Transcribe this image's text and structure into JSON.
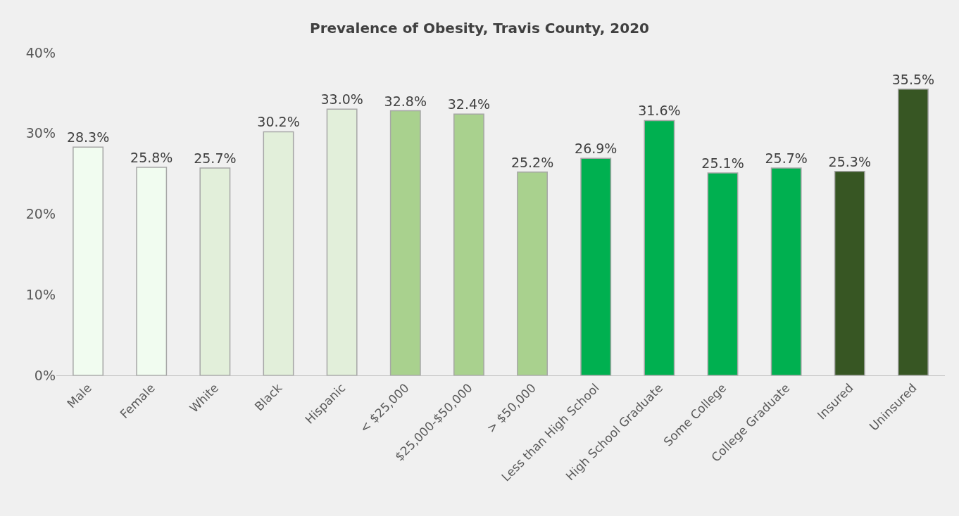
{
  "chart_data": {
    "type": "bar",
    "title": "Prevalence of Obesity, Travis County, 2020",
    "categories": [
      "Male",
      "Female",
      "White",
      "Black",
      "Hispanic",
      "< $25,000",
      "$25,000-$50,000",
      "> $50,000",
      "Less than High School",
      "High School Graduate",
      "Some College",
      "College Graduate",
      "Insured",
      "Uninsured"
    ],
    "values": [
      28.3,
      25.8,
      25.7,
      30.2,
      33.0,
      32.8,
      32.4,
      25.2,
      26.9,
      31.6,
      25.1,
      25.7,
      25.3,
      35.5
    ],
    "colors": [
      "#f1fcf0",
      "#f1fcf0",
      "#e2efda",
      "#e2efda",
      "#e2efda",
      "#a9d18e",
      "#a9d18e",
      "#a9d18e",
      "#00b050",
      "#00b050",
      "#00b050",
      "#00b050",
      "#375623",
      "#375623"
    ],
    "value_labels": [
      "28.3%",
      "25.8%",
      "25.7%",
      "30.2%",
      "33.0%",
      "32.8%",
      "32.4%",
      "25.2%",
      "26.9%",
      "31.6%",
      "25.1%",
      "25.7%",
      "25.3%",
      "35.5%"
    ],
    "ylim": [
      0,
      40
    ],
    "yticks": [
      {
        "value": 0,
        "label": "0%"
      },
      {
        "value": 10,
        "label": "10%"
      },
      {
        "value": 20,
        "label": "20%"
      },
      {
        "value": 30,
        "label": "30%"
      },
      {
        "value": 40,
        "label": "40%"
      }
    ],
    "grid": false
  }
}
